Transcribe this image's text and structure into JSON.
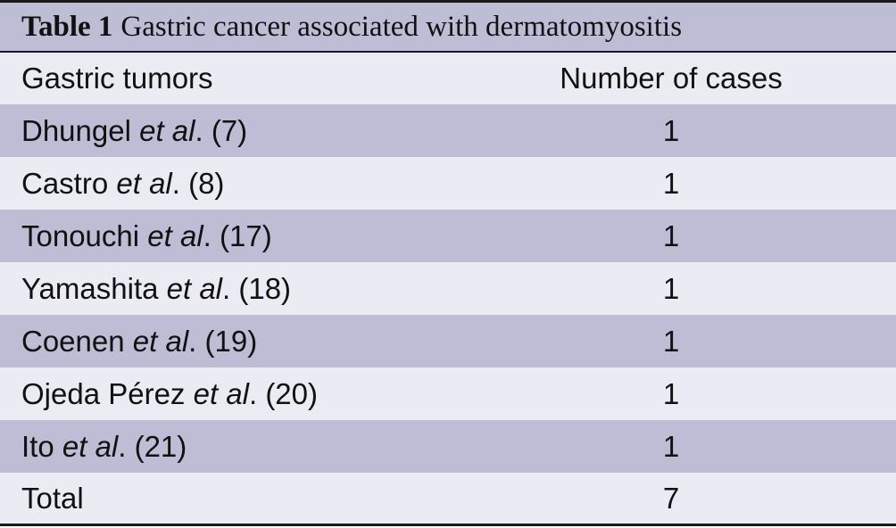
{
  "caption": {
    "label": "Table 1",
    "title": "Gastric cancer associated with dermatomyositis"
  },
  "columns": [
    "Gastric tumors",
    "Number of cases"
  ],
  "rows": [
    {
      "author": "Dhungel",
      "etal": "et al",
      "ref": ". (7)",
      "cases": "1"
    },
    {
      "author": "Castro",
      "etal": "et al",
      "ref": ". (8)",
      "cases": "1"
    },
    {
      "author": "Tonouchi",
      "etal": "et al",
      "ref": ". (17)",
      "cases": "1"
    },
    {
      "author": "Yamashita",
      "etal": "et al",
      "ref": ". (18)",
      "cases": "1"
    },
    {
      "author": "Coenen",
      "etal": "et al",
      "ref": ". (19)",
      "cases": "1"
    },
    {
      "author": "Ojeda Pérez",
      "etal": "et al",
      "ref": ". (20)",
      "cases": "1"
    },
    {
      "author": "Ito",
      "etal": "et al",
      "ref": ". (21)",
      "cases": "1"
    }
  ],
  "total": {
    "label": "Total",
    "cases": "7"
  },
  "colors": {
    "dark_band": "#bdbdd6",
    "light_band": "#ebebf3",
    "rule": "#1a1a1a"
  }
}
